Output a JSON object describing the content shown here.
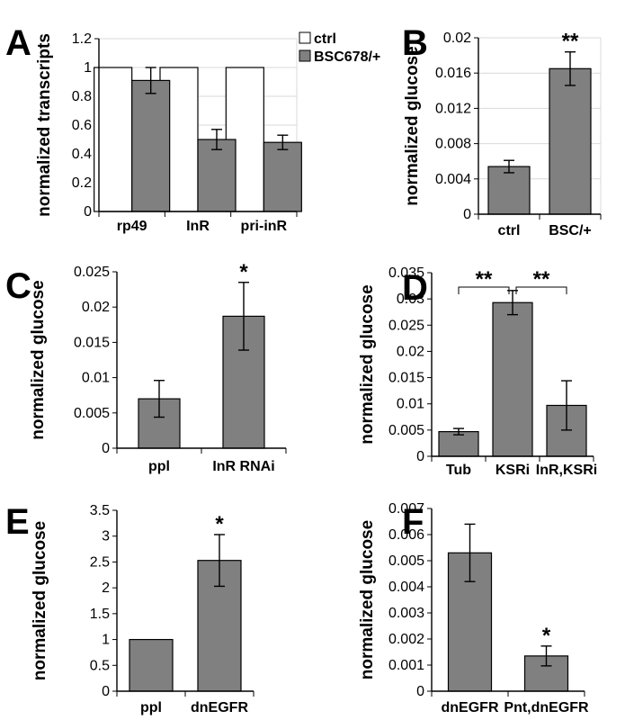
{
  "colors": {
    "ctrl": "#ffffff",
    "mutant": "#808080",
    "axis": "#000000",
    "grid": "#d9d9d9"
  },
  "chart_data": [
    {
      "panel": "A",
      "type": "bar",
      "ylabel": "normalized transcripts",
      "categories": [
        "rp49",
        "InR",
        "pri-inR"
      ],
      "ylim": [
        0,
        1.2
      ],
      "yticks": [
        "0",
        "0.2",
        "0.4",
        "0.6",
        "0.8",
        "1",
        "1.2"
      ],
      "grid": true,
      "legend": "top-right",
      "series": [
        {
          "name": "ctrl",
          "values": [
            1,
            1,
            1
          ],
          "errors": [
            0,
            0,
            0
          ],
          "color": "#ffffff"
        },
        {
          "name": "BSC678/+",
          "values": [
            0.91,
            0.5,
            0.48
          ],
          "errors": [
            0.09,
            0.07,
            0.05
          ],
          "color": "#808080"
        }
      ],
      "annotations": []
    },
    {
      "panel": "B",
      "type": "bar",
      "ylabel": "normalized glucose",
      "categories": [
        "ctrl",
        "BSC/+"
      ],
      "ylim": [
        0,
        0.02
      ],
      "yticks": [
        "0",
        "0.004",
        "0.008",
        "0.012",
        "0.016",
        "0.02"
      ],
      "grid": true,
      "series": [
        {
          "values": [
            0.0054,
            0.0165
          ],
          "errors": [
            0.0007,
            0.0019
          ],
          "color": "#808080"
        }
      ],
      "annotations": [
        {
          "text": "**",
          "category": 1
        }
      ]
    },
    {
      "panel": "C",
      "type": "bar",
      "ylabel": "normalized glucose",
      "categories": [
        "ppl",
        "InR RNAi"
      ],
      "ylim": [
        0,
        0.025
      ],
      "yticks": [
        "0",
        "0.005",
        "0.01",
        "0.015",
        "0.02",
        "0.025"
      ],
      "grid": false,
      "series": [
        {
          "values": [
            0.007,
            0.0187
          ],
          "errors": [
            0.0026,
            0.0048
          ],
          "color": "#808080"
        }
      ],
      "annotations": [
        {
          "text": "*",
          "category": 1
        }
      ]
    },
    {
      "panel": "D",
      "type": "bar",
      "ylabel": "normalized glucose",
      "categories": [
        "Tub",
        "KSRi",
        "InR,KSRi"
      ],
      "ylim": [
        0,
        0.035
      ],
      "yticks": [
        "0",
        "0.005",
        "0.01",
        "0.015",
        "0.02",
        "0.025",
        "0.03",
        "0.035"
      ],
      "grid": false,
      "series": [
        {
          "values": [
            0.0047,
            0.0293,
            0.0097
          ],
          "errors": [
            0.0006,
            0.0023,
            0.0047
          ],
          "color": "#808080"
        }
      ],
      "brackets": [
        {
          "from": 0,
          "to": 1,
          "text": "**"
        },
        {
          "from": 1,
          "to": 2,
          "text": "**"
        }
      ],
      "annotations": []
    },
    {
      "panel": "E",
      "type": "bar",
      "ylabel": "normalized glucose",
      "categories": [
        "ppl",
        "dnEGFR"
      ],
      "ylim": [
        0,
        3.5
      ],
      "yticks": [
        "0",
        "0.5",
        "1",
        "1.5",
        "2",
        "2.5",
        "3",
        "3.5"
      ],
      "grid": false,
      "series": [
        {
          "values": [
            1.0,
            2.53
          ],
          "errors": [
            0,
            0.5
          ],
          "color": "#808080"
        }
      ],
      "annotations": [
        {
          "text": "*",
          "category": 1
        }
      ]
    },
    {
      "panel": "F",
      "type": "bar",
      "ylabel": "normalized glucose",
      "categories": [
        "dnEGFR",
        "Pnt,dnEGFR"
      ],
      "ylim": [
        0,
        0.007
      ],
      "yticks": [
        "0",
        "0.001",
        "0.002",
        "0.003",
        "0.004",
        "0.005",
        "0.006",
        "0.007"
      ],
      "grid": false,
      "series": [
        {
          "values": [
            0.0053,
            0.00135
          ],
          "errors": [
            0.0011,
            0.00038
          ],
          "color": "#808080"
        }
      ],
      "annotations": [
        {
          "text": "*",
          "category": 1
        }
      ]
    }
  ]
}
